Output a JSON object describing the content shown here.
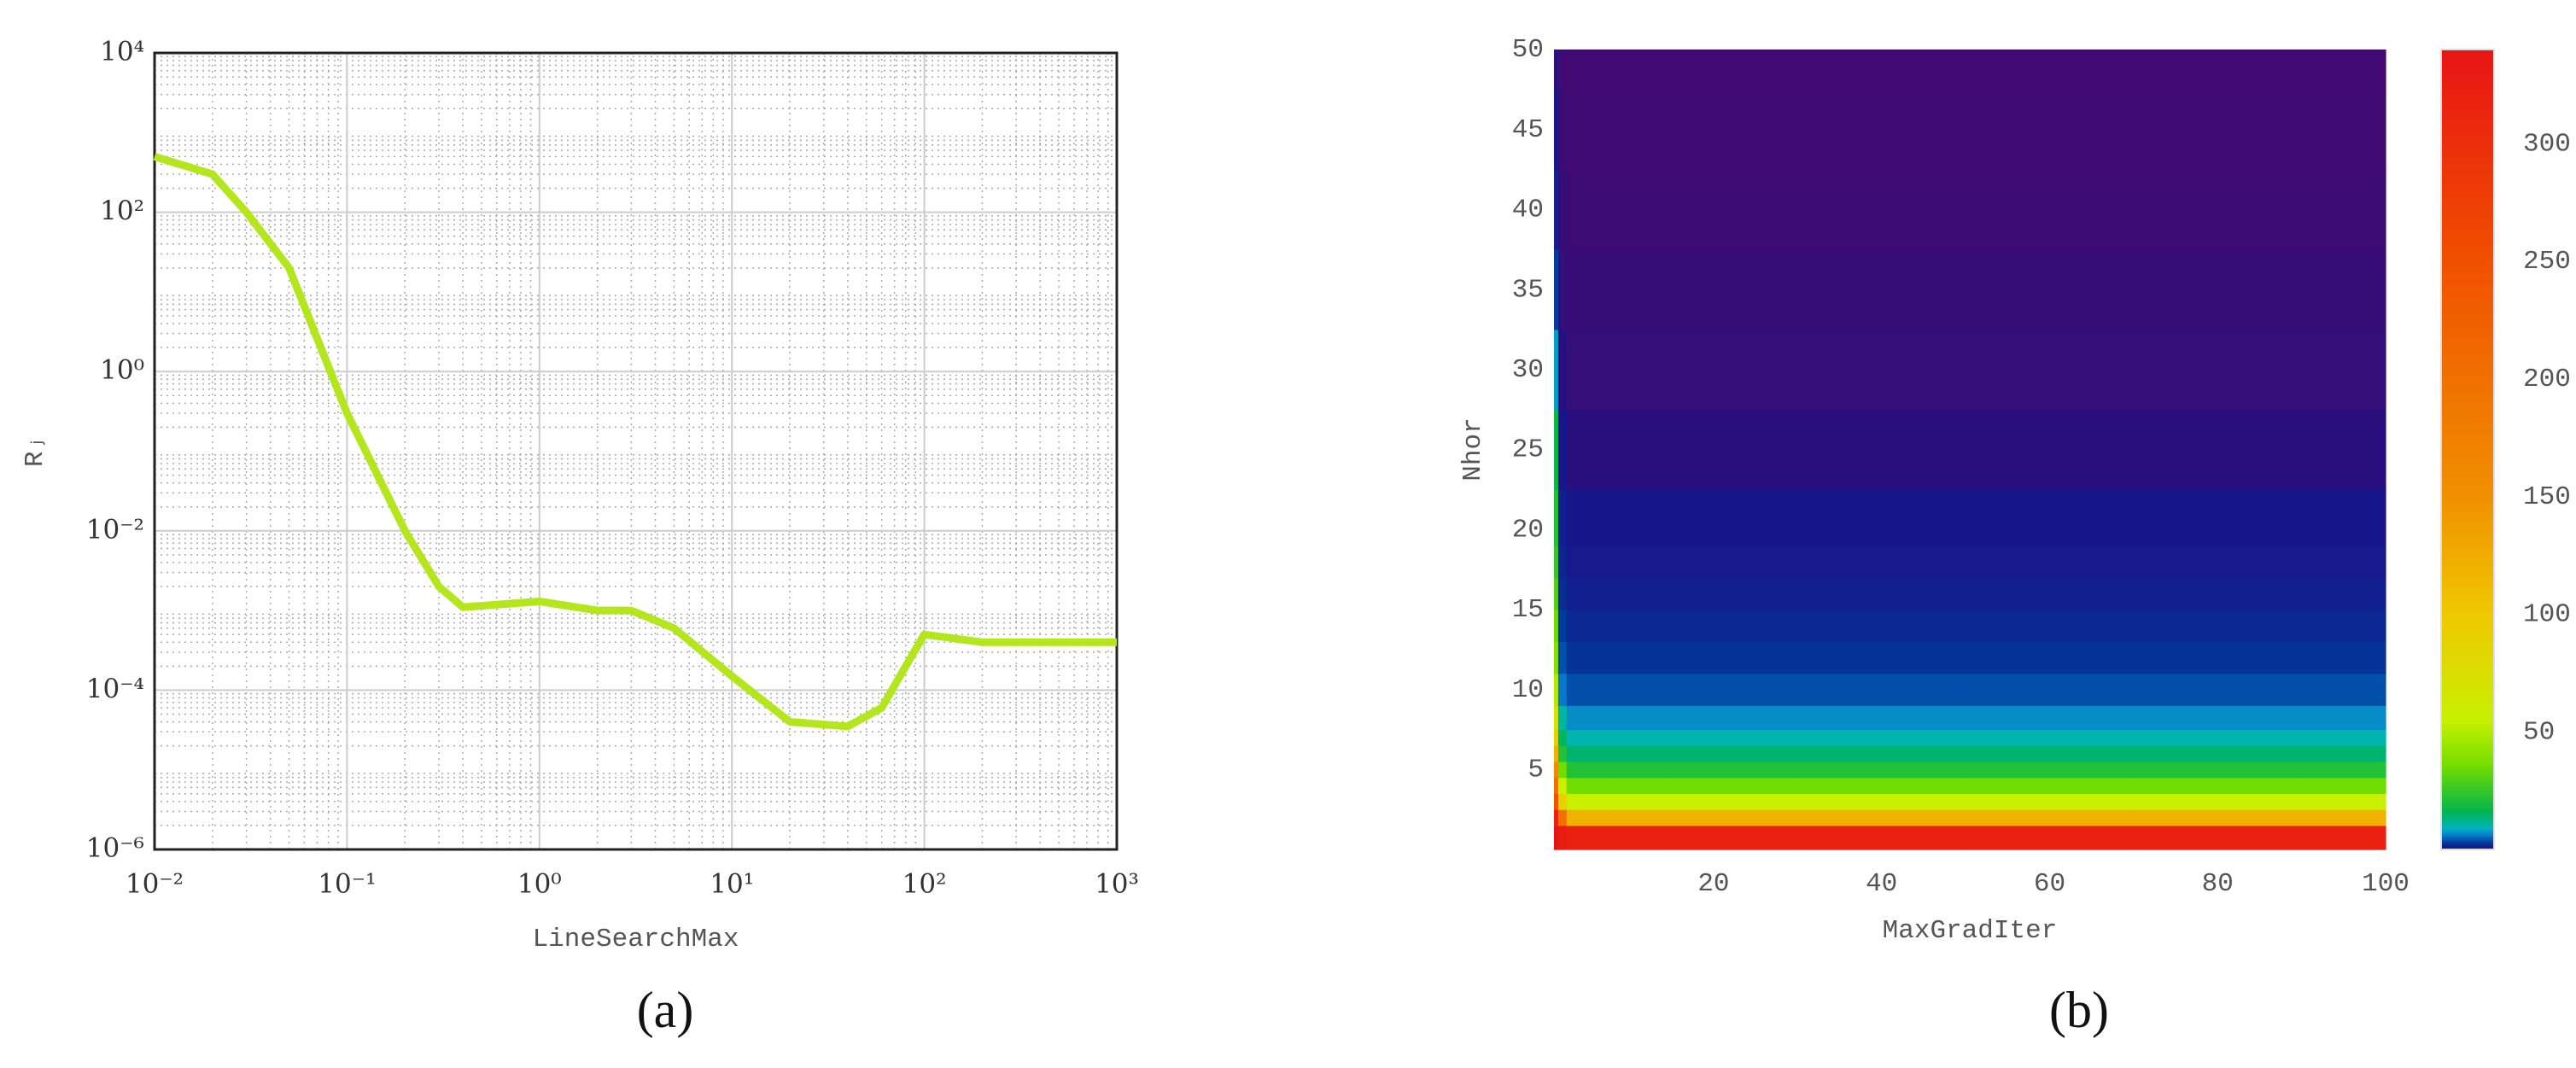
{
  "chart_data": [
    {
      "type": "line",
      "caption": "(a)",
      "xlabel": "LineSearchMax",
      "ylabel": "Rⱼ",
      "xscale": "log",
      "yscale": "log",
      "grid": true,
      "minor_grid": true,
      "xlim": [
        0.01,
        1000
      ],
      "ylim": [
        1e-06,
        10000
      ],
      "xticks": [
        {
          "value": 0.01,
          "label": "10⁻²"
        },
        {
          "value": 0.1,
          "label": "10⁻¹"
        },
        {
          "value": 1,
          "label": "10⁰"
        },
        {
          "value": 10,
          "label": "10¹"
        },
        {
          "value": 100,
          "label": "10²"
        },
        {
          "value": 1000,
          "label": "10³"
        }
      ],
      "yticks": [
        {
          "value": 1e-06,
          "label": "10⁻⁶"
        },
        {
          "value": 0.0001,
          "label": "10⁻⁴"
        },
        {
          "value": 0.01,
          "label": "10⁻²"
        },
        {
          "value": 1,
          "label": "10⁰"
        },
        {
          "value": 100,
          "label": "10²"
        },
        {
          "value": 10000,
          "label": "10⁴"
        }
      ],
      "x": [
        0.01,
        0.02,
        0.03,
        0.05,
        0.1,
        0.2,
        0.3,
        0.4,
        1,
        2,
        3,
        5,
        10,
        20,
        40,
        60,
        80,
        100,
        200,
        500,
        1000
      ],
      "series": [
        {
          "color": "#b4e61e",
          "values": [
            500,
            300,
            100,
            20,
            0.3,
            0.01,
            0.002,
            0.0011,
            0.0013,
            0.001,
            0.001,
            0.0006,
            0.00015,
            4e-05,
            3.5e-05,
            6e-05,
            0.0002,
            0.0005,
            0.0004,
            0.0004,
            0.0004
          ]
        }
      ]
    },
    {
      "type": "heatmap",
      "caption": "(b)",
      "xlabel": "MaxGradIter",
      "ylabel": "Nhor",
      "xlim": [
        1,
        100
      ],
      "ylim": [
        0,
        50
      ],
      "xticks": [
        20,
        40,
        60,
        80,
        100
      ],
      "yticks": [
        5,
        10,
        15,
        20,
        25,
        30,
        35,
        40,
        45,
        50
      ],
      "clim": [
        0,
        340
      ],
      "cticks": [
        50,
        100,
        150,
        200,
        250,
        300
      ],
      "colormap": [
        [
          0,
          "#46086e"
        ],
        [
          1,
          "#18168a"
        ],
        [
          3,
          "#003c9c"
        ],
        [
          6,
          "#0a78c8"
        ],
        [
          9,
          "#00b4c0"
        ],
        [
          16,
          "#00b450"
        ],
        [
          35,
          "#70dc00"
        ],
        [
          55,
          "#c8f000"
        ],
        [
          100,
          "#f0c800"
        ],
        [
          150,
          "#f09000"
        ],
        [
          250,
          "#f05000"
        ],
        [
          340,
          "#e81414"
        ]
      ],
      "x": [
        1,
        2,
        3,
        5,
        10,
        20,
        40,
        60,
        80,
        100
      ],
      "y": [
        1,
        2,
        3,
        4,
        5,
        6,
        7,
        8,
        10,
        12,
        14,
        16,
        18,
        20,
        25,
        30,
        35,
        40,
        45,
        50
      ],
      "z": [
        [
          340,
          330,
          320,
          320,
          320,
          320,
          320,
          320,
          320,
          320
        ],
        [
          320,
          200,
          120,
          120,
          120,
          120,
          120,
          120,
          120,
          120
        ],
        [
          250,
          90,
          55,
          55,
          55,
          55,
          55,
          55,
          55,
          55
        ],
        [
          200,
          55,
          35,
          35,
          35,
          35,
          35,
          35,
          35,
          35
        ],
        [
          160,
          35,
          22,
          22,
          22,
          22,
          22,
          22,
          22,
          22
        ],
        [
          120,
          22,
          14,
          14,
          14,
          14,
          14,
          14,
          14,
          14
        ],
        [
          90,
          15,
          10,
          10,
          10,
          10,
          10,
          10,
          10,
          10
        ],
        [
          70,
          11,
          7,
          7,
          7,
          7,
          7,
          7,
          7,
          7
        ],
        [
          50,
          6,
          4,
          4,
          4,
          4,
          4,
          4,
          4,
          4
        ],
        [
          40,
          4,
          2.5,
          2.5,
          2.5,
          2.5,
          2.5,
          2.5,
          2.5,
          2.5
        ],
        [
          35,
          3,
          2,
          2,
          2,
          2,
          2,
          2,
          2,
          2
        ],
        [
          30,
          2.2,
          1.5,
          1.5,
          1.5,
          1.5,
          1.5,
          1.5,
          1.5,
          1.5
        ],
        [
          25,
          1.8,
          1.2,
          1.2,
          1.2,
          1.2,
          1.2,
          1.2,
          1.2,
          1.2
        ],
        [
          22,
          1.5,
          1,
          1,
          1,
          1,
          1,
          1,
          1,
          1
        ],
        [
          18,
          1,
          0.6,
          0.6,
          0.6,
          0.6,
          0.6,
          0.6,
          0.6,
          0.6
        ],
        [
          8,
          0.6,
          0.4,
          0.4,
          0.4,
          0.4,
          0.4,
          0.4,
          0.4,
          0.4
        ],
        [
          3,
          0.4,
          0.3,
          0.3,
          0.3,
          0.3,
          0.3,
          0.3,
          0.3,
          0.3
        ],
        [
          1.5,
          0.3,
          0.2,
          0.2,
          0.2,
          0.2,
          0.2,
          0.2,
          0.2,
          0.2
        ],
        [
          1,
          0.2,
          0.15,
          0.15,
          0.15,
          0.15,
          0.15,
          0.15,
          0.15,
          0.15
        ],
        [
          0.6,
          0.15,
          0.1,
          0.1,
          0.1,
          0.1,
          0.1,
          0.1,
          0.1,
          0.1
        ]
      ]
    }
  ]
}
